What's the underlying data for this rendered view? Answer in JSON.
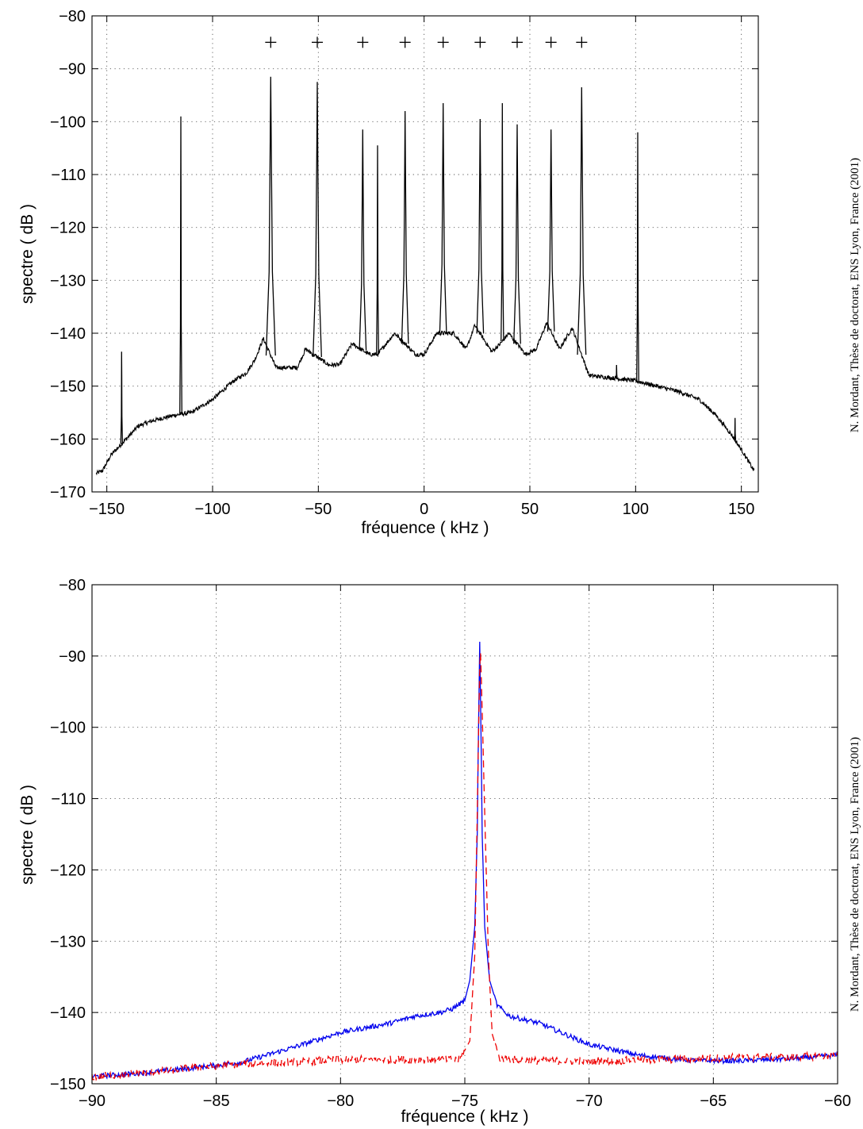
{
  "chart_data": [
    {
      "type": "line",
      "title": "",
      "xlabel": "fréquence ( kHz )",
      "ylabel": "spectre ( dB )",
      "xlim": [
        -157,
        158
      ],
      "ylim": [
        -170,
        -80
      ],
      "xticks": [
        -150,
        -100,
        -50,
        0,
        50,
        100,
        150
      ],
      "yticks": [
        -170,
        -160,
        -150,
        -140,
        -130,
        -120,
        -110,
        -100,
        -90,
        -80
      ],
      "xtick_labels": [
        "−150",
        "−100",
        "−50",
        "0",
        "50",
        "100",
        "150"
      ],
      "ytick_labels": [
        "−170",
        "−160",
        "−150",
        "−140",
        "−130",
        "−120",
        "−110",
        "−100",
        "−90",
        "−80"
      ],
      "grid": true,
      "series": [
        {
          "line_color": "#000000",
          "line_style": "solid",
          "baseline": [
            [
              -155,
              -166.5
            ],
            [
              -152,
              -166
            ],
            [
              -148,
              -163
            ],
            [
              -142,
              -160.5
            ],
            [
              -135,
              -157.5
            ],
            [
              -128,
              -156.5
            ],
            [
              -118,
              -155.5
            ],
            [
              -110,
              -155
            ],
            [
              -100,
              -152.5
            ],
            [
              -90,
              -149
            ],
            [
              -84,
              -147.5
            ],
            [
              -80,
              -145
            ],
            [
              -76,
              -141
            ],
            [
              -70,
              -146.5
            ],
            [
              -66,
              -146.5
            ],
            [
              -60,
              -146.5
            ],
            [
              -56,
              -143
            ],
            [
              -45,
              -146
            ],
            [
              -40,
              -146
            ],
            [
              -34,
              -142
            ],
            [
              -26,
              -144
            ],
            [
              -22,
              -144
            ],
            [
              -14,
              -140
            ],
            [
              -4,
              -144
            ],
            [
              0,
              -144
            ],
            [
              6,
              -140
            ],
            [
              14,
              -140
            ],
            [
              20,
              -143
            ],
            [
              24,
              -138.5
            ],
            [
              32,
              -143.5
            ],
            [
              36,
              -142
            ],
            [
              40,
              -140
            ],
            [
              48,
              -144
            ],
            [
              53,
              -143
            ],
            [
              58,
              -138
            ],
            [
              64,
              -143
            ],
            [
              70,
              -139
            ],
            [
              78,
              -148
            ],
            [
              90,
              -148.5
            ],
            [
              100,
              -149
            ],
            [
              110,
              -150
            ],
            [
              120,
              -151
            ],
            [
              130,
              -152.5
            ],
            [
              138,
              -155.5
            ],
            [
              145,
              -159
            ],
            [
              150,
              -162
            ],
            [
              156,
              -166
            ]
          ],
          "peaks": [
            {
              "x": -143,
              "y": -143.5,
              "width": 0.4
            },
            {
              "x": -115,
              "y": -99,
              "width": 0.5
            },
            {
              "x": -72.5,
              "y": -91.5,
              "width": 2.2
            },
            {
              "x": -50.5,
              "y": -92.5,
              "width": 2.0
            },
            {
              "x": -29,
              "y": -101.5,
              "width": 1.6
            },
            {
              "x": -22,
              "y": -104.5,
              "width": 0.5
            },
            {
              "x": -9,
              "y": -98,
              "width": 1.6
            },
            {
              "x": 9,
              "y": -96.5,
              "width": 1.6
            },
            {
              "x": 26.5,
              "y": -99.5,
              "width": 1.6
            },
            {
              "x": 37,
              "y": -96.5,
              "width": 0.6
            },
            {
              "x": 44,
              "y": -100.5,
              "width": 1.6
            },
            {
              "x": 60,
              "y": -101.5,
              "width": 1.6
            },
            {
              "x": 74.5,
              "y": -93.5,
              "width": 2.0
            },
            {
              "x": 101,
              "y": -102,
              "width": 0.5
            },
            {
              "x": 91,
              "y": -146,
              "width": 0.3
            },
            {
              "x": 147,
              "y": -156,
              "width": 0.3
            }
          ]
        },
        {
          "marker": "+",
          "line_color": "#000000",
          "x": [
            -72.5,
            -50.5,
            -29,
            -9,
            9,
            26.5,
            44,
            60,
            74.5
          ],
          "y": [
            -85,
            -85,
            -85,
            -85,
            -85,
            -85,
            -85,
            -85,
            -85
          ]
        }
      ]
    },
    {
      "type": "line",
      "title": "",
      "xlabel": "fréquence ( kHz )",
      "ylabel": "spectre ( dB )",
      "xlim": [
        -90,
        -60
      ],
      "ylim": [
        -150,
        -80
      ],
      "xticks": [
        -90,
        -85,
        -80,
        -75,
        -70,
        -65,
        -60
      ],
      "yticks": [
        -150,
        -140,
        -130,
        -120,
        -110,
        -100,
        -90,
        -80
      ],
      "xtick_labels": [
        "−90",
        "−85",
        "−80",
        "−75",
        "−70",
        "−65",
        "−60"
      ],
      "ytick_labels": [
        "−150",
        "−140",
        "−130",
        "−120",
        "−110",
        "−100",
        "−90",
        "−80"
      ],
      "grid": true,
      "series": [
        {
          "line_color": "#0000ee",
          "line_style": "solid",
          "points": [
            [
              -90,
              -149
            ],
            [
              -88,
              -148.5
            ],
            [
              -86,
              -147.8
            ],
            [
              -84,
              -147
            ],
            [
              -82,
              -145
            ],
            [
              -80,
              -142.8
            ],
            [
              -78,
              -141.5
            ],
            [
              -77,
              -140.5
            ],
            [
              -76,
              -140
            ],
            [
              -75.5,
              -139.5
            ],
            [
              -75,
              -138.3
            ],
            [
              -74.8,
              -135.5
            ],
            [
              -74.6,
              -128
            ],
            [
              -74.5,
              -115
            ],
            [
              -74.45,
              -100
            ],
            [
              -74.4,
              -88
            ],
            [
              -74.35,
              -100
            ],
            [
              -74.3,
              -115
            ],
            [
              -74.2,
              -128
            ],
            [
              -74,
              -135.5
            ],
            [
              -73.7,
              -139
            ],
            [
              -73.2,
              -140.5
            ],
            [
              -72,
              -141.5
            ],
            [
              -70,
              -144.5
            ],
            [
              -68,
              -146
            ],
            [
              -66,
              -146.7
            ],
            [
              -64,
              -146.8
            ],
            [
              -62,
              -146.5
            ],
            [
              -60,
              -146
            ]
          ]
        },
        {
          "line_color": "#ee0000",
          "line_style": "dashed",
          "points": [
            [
              -90,
              -149
            ],
            [
              -88,
              -148.5
            ],
            [
              -86,
              -147.8
            ],
            [
              -84,
              -147.2
            ],
            [
              -82,
              -147
            ],
            [
              -80,
              -146.6
            ],
            [
              -78,
              -146.6
            ],
            [
              -76,
              -146.6
            ],
            [
              -75.2,
              -146.6
            ],
            [
              -74.8,
              -144
            ],
            [
              -74.6,
              -132
            ],
            [
              -74.5,
              -112
            ],
            [
              -74.42,
              -95
            ],
            [
              -74.38,
              -88
            ],
            [
              -74.32,
              -95
            ],
            [
              -74.2,
              -112
            ],
            [
              -74.05,
              -132
            ],
            [
              -73.9,
              -143
            ],
            [
              -73.6,
              -146.5
            ],
            [
              -72,
              -146.8
            ],
            [
              -70,
              -146.8
            ],
            [
              -68,
              -146.7
            ],
            [
              -66,
              -146.5
            ],
            [
              -64,
              -146.3
            ],
            [
              -62,
              -146.3
            ],
            [
              -60,
              -146
            ]
          ]
        }
      ]
    }
  ],
  "credit": {
    "top": "N. Mordant, Thèse de doctorat, ENS Lyon, France (2001)",
    "bottom": "N. Mordant, Thèse de doctorat, ENS Lyon, France (2001)"
  }
}
